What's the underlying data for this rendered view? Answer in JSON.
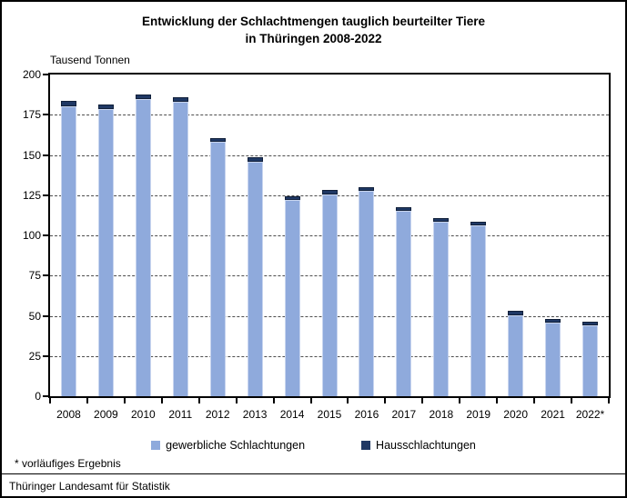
{
  "title_line1": "Entwicklung der Schlachtmengen tauglich beurteilter Tiere",
  "title_line2": "in Thüringen 2008-2022",
  "unit_label": "Tausend Tonnen",
  "footnote": "* vorläufiges Ergebnis",
  "source": "Thüringer Landesamt für Statistik",
  "colors": {
    "bar_light": "#8faadc",
    "bar_light_border": "#c8d5ef",
    "bar_dark": "#1f3864",
    "bar_dark_border": "#11203a",
    "gridline": "#4d4d4d",
    "axis": "#000000"
  },
  "chart_data": {
    "type": "bar",
    "stacked": true,
    "title": "Entwicklung der Schlachtmengen tauglich beurteilter Tiere in Thüringen 2008-2022",
    "ylabel": "Tausend Tonnen",
    "xlabel": "",
    "ylim": [
      0,
      200
    ],
    "ytick_step": 25,
    "grid": "horizontal-dashed",
    "legend_position": "bottom",
    "categories": [
      "2008",
      "2009",
      "2010",
      "2011",
      "2012",
      "2013",
      "2014",
      "2015",
      "2016",
      "2017",
      "2018",
      "2019",
      "2020",
      "2021",
      "2022*"
    ],
    "series": [
      {
        "name": "gewerbliche Schlachtungen",
        "color": "#8faadc",
        "values": [
          180.5,
          178.5,
          184.5,
          183.0,
          158.0,
          146.0,
          122.0,
          125.5,
          127.5,
          115.0,
          108.5,
          106.0,
          50.5,
          45.5,
          44.0
        ]
      },
      {
        "name": "Hausschlachtungen",
        "color": "#1f3864",
        "values": [
          3.0,
          3.0,
          3.0,
          3.0,
          2.5,
          2.5,
          2.5,
          2.5,
          2.5,
          2.5,
          2.5,
          2.5,
          2.5,
          2.5,
          2.5
        ]
      }
    ],
    "totals": [
      183.5,
      181.5,
      187.5,
      186.0,
      160.5,
      148.5,
      124.5,
      128.0,
      130.0,
      117.5,
      111.0,
      108.5,
      53.0,
      48.0,
      46.5
    ]
  }
}
